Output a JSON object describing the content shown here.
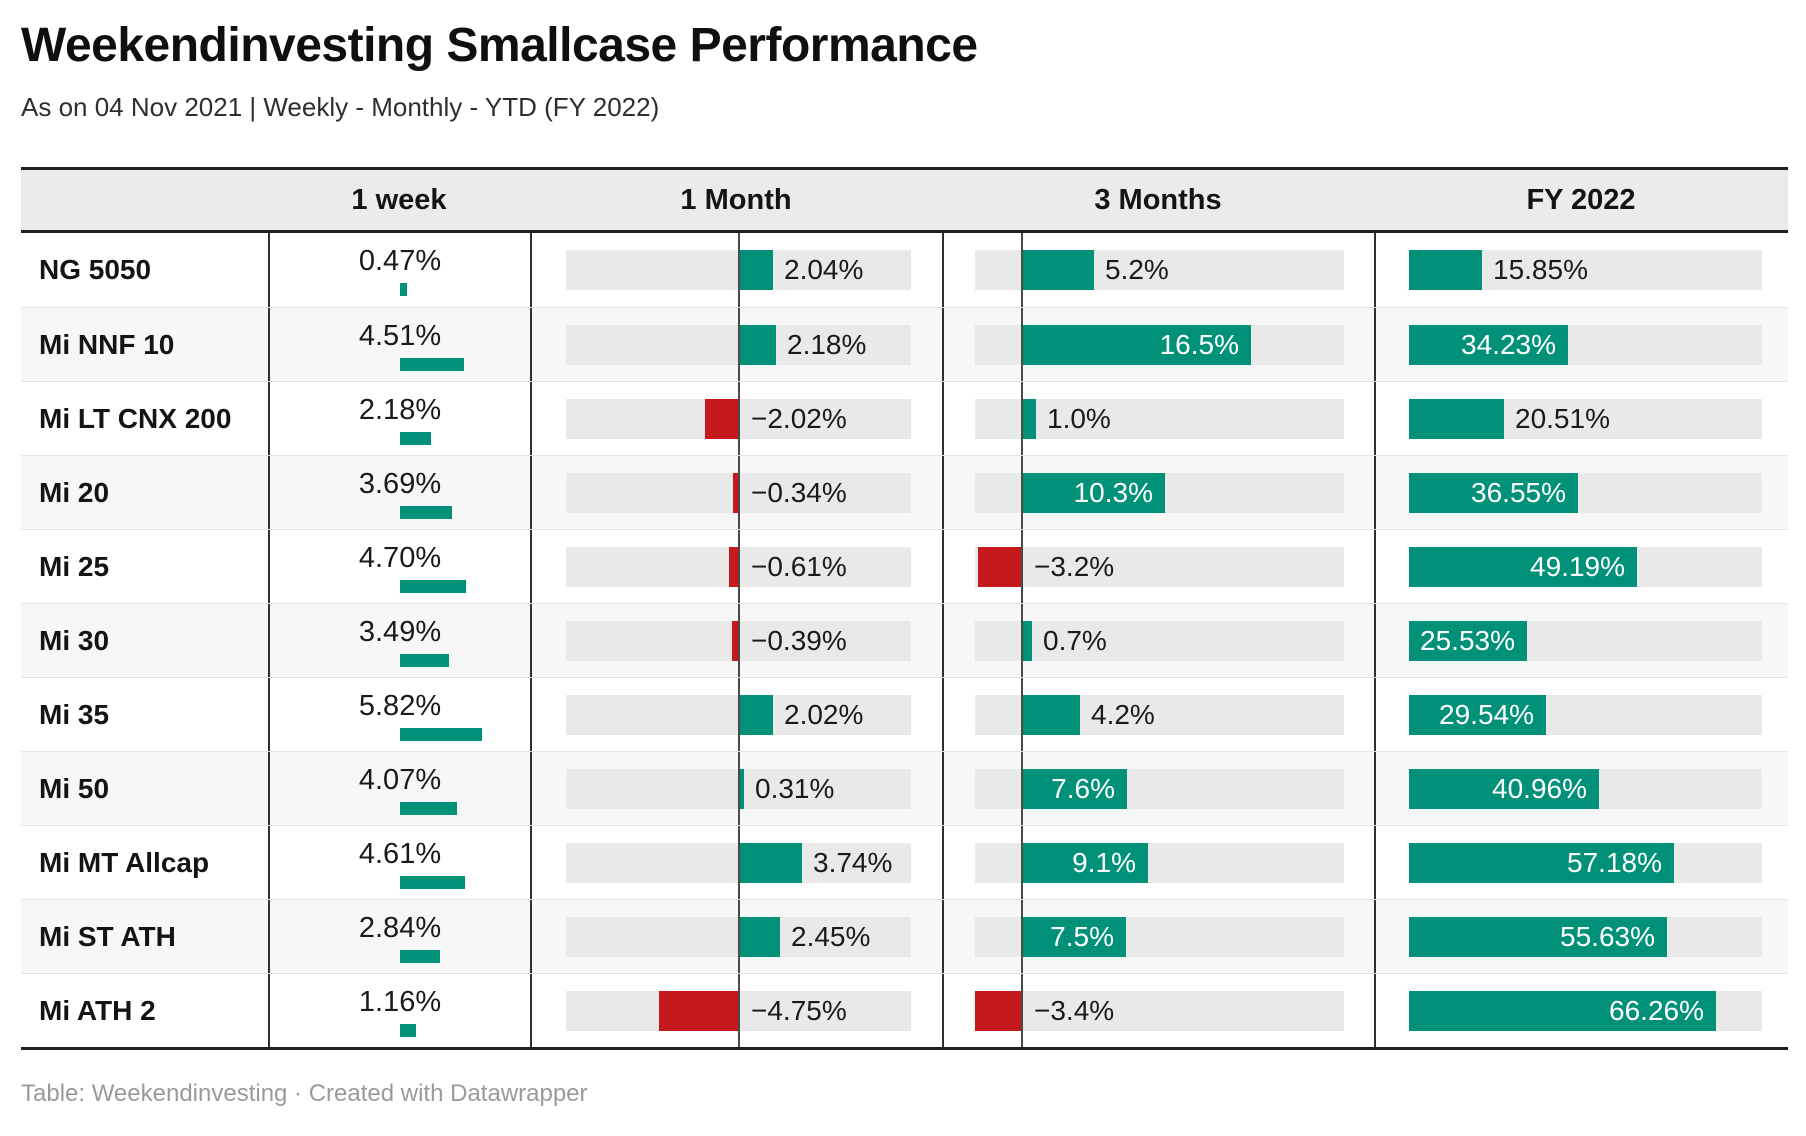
{
  "title": "Weekendinvesting Smallcase Performance",
  "subtitle": "As on 04 Nov 2021 | Weekly - Monthly - YTD (FY 2022)",
  "footer": "Table: Weekendinvesting · Created with Datawrapper",
  "colors": {
    "green": "#009178",
    "red": "#c51a1d",
    "track": "#e9e9e9",
    "header_bg": "#ebebeb",
    "row_alt": "#f7f7f7",
    "border_dark": "#1f1f1f",
    "divider": "#2e2e2e",
    "axis": "#4a4a4a"
  },
  "chart_data": {
    "type": "table",
    "title": "Weekendinvesting Smallcase Performance",
    "subtitle": "As on 04 Nov 2021 | Weekly - Monthly - YTD (FY 2022)",
    "unit": "%",
    "columns": [
      "1 week",
      "1 Month",
      "3 Months",
      "FY 2022"
    ],
    "rows": [
      {
        "name": "NG 5050",
        "week": {
          "value": 0.47,
          "label": "0.47%"
        },
        "month": {
          "value": 2.04,
          "label": "2.04%"
        },
        "three_months": {
          "value": 5.2,
          "label": "5.2%"
        },
        "fy2022": {
          "value": 15.85,
          "label": "15.85%"
        }
      },
      {
        "name": "Mi NNF 10",
        "week": {
          "value": 4.51,
          "label": "4.51%"
        },
        "month": {
          "value": 2.18,
          "label": "2.18%"
        },
        "three_months": {
          "value": 16.5,
          "label": "16.5%"
        },
        "fy2022": {
          "value": 34.23,
          "label": "34.23%"
        }
      },
      {
        "name": "Mi LT CNX 200",
        "week": {
          "value": 2.18,
          "label": "2.18%"
        },
        "month": {
          "value": -2.02,
          "label": "−2.02%"
        },
        "three_months": {
          "value": 1.0,
          "label": "1.0%"
        },
        "fy2022": {
          "value": 20.51,
          "label": "20.51%"
        }
      },
      {
        "name": "Mi 20",
        "week": {
          "value": 3.69,
          "label": "3.69%"
        },
        "month": {
          "value": -0.34,
          "label": "−0.34%"
        },
        "three_months": {
          "value": 10.3,
          "label": "10.3%"
        },
        "fy2022": {
          "value": 36.55,
          "label": "36.55%"
        }
      },
      {
        "name": "Mi 25",
        "week": {
          "value": 4.7,
          "label": "4.70%"
        },
        "month": {
          "value": -0.61,
          "label": "−0.61%"
        },
        "three_months": {
          "value": -3.2,
          "label": "−3.2%"
        },
        "fy2022": {
          "value": 49.19,
          "label": "49.19%"
        }
      },
      {
        "name": "Mi 30",
        "week": {
          "value": 3.49,
          "label": "3.49%"
        },
        "month": {
          "value": -0.39,
          "label": "−0.39%"
        },
        "three_months": {
          "value": 0.7,
          "label": "0.7%"
        },
        "fy2022": {
          "value": 25.53,
          "label": "25.53%"
        }
      },
      {
        "name": "Mi 35",
        "week": {
          "value": 5.82,
          "label": "5.82%"
        },
        "month": {
          "value": 2.02,
          "label": "2.02%"
        },
        "three_months": {
          "value": 4.2,
          "label": "4.2%"
        },
        "fy2022": {
          "value": 29.54,
          "label": "29.54%"
        }
      },
      {
        "name": "Mi 50",
        "week": {
          "value": 4.07,
          "label": "4.07%"
        },
        "month": {
          "value": 0.31,
          "label": "0.31%"
        },
        "three_months": {
          "value": 7.6,
          "label": "7.6%"
        },
        "fy2022": {
          "value": 40.96,
          "label": "40.96%"
        }
      },
      {
        "name": "Mi MT Allcap",
        "week": {
          "value": 4.61,
          "label": "4.61%"
        },
        "month": {
          "value": 3.74,
          "label": "3.74%"
        },
        "three_months": {
          "value": 9.1,
          "label": "9.1%"
        },
        "fy2022": {
          "value": 57.18,
          "label": "57.18%"
        }
      },
      {
        "name": "Mi ST ATH",
        "week": {
          "value": 2.84,
          "label": "2.84%"
        },
        "month": {
          "value": 2.45,
          "label": "2.45%"
        },
        "three_months": {
          "value": 7.5,
          "label": "7.5%"
        },
        "fy2022": {
          "value": 55.63,
          "label": "55.63%"
        }
      },
      {
        "name": "Mi ATH 2",
        "week": {
          "value": 1.16,
          "label": "1.16%"
        },
        "month": {
          "value": -4.75,
          "label": "−4.75%"
        },
        "three_months": {
          "value": -3.4,
          "label": "−3.4%"
        },
        "fy2022": {
          "value": 66.26,
          "label": "66.26%"
        }
      }
    ]
  }
}
